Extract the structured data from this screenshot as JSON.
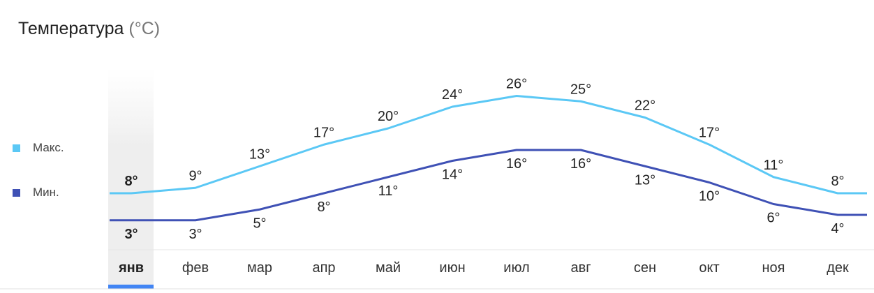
{
  "title": "Температура",
  "title_unit": "(°C)",
  "legend": [
    {
      "label": "Макс.",
      "color": "#5bc8f5"
    },
    {
      "label": "Мин.",
      "color": "#3f51b5"
    }
  ],
  "selected_month_index": 0,
  "chart_data": {
    "type": "line",
    "categories": [
      "янв",
      "фев",
      "мар",
      "апр",
      "май",
      "июн",
      "июл",
      "авг",
      "сен",
      "окт",
      "ноя",
      "дек"
    ],
    "series": [
      {
        "name": "Макс.",
        "values": [
          8,
          9,
          13,
          17,
          20,
          24,
          26,
          25,
          22,
          17,
          11,
          8
        ],
        "color": "#5bc8f5"
      },
      {
        "name": "Мин.",
        "values": [
          3,
          3,
          5,
          8,
          11,
          14,
          16,
          16,
          13,
          10,
          6,
          4
        ],
        "color": "#3f51b5"
      }
    ],
    "value_suffix": "°",
    "grid": false,
    "legend_position": "left"
  }
}
